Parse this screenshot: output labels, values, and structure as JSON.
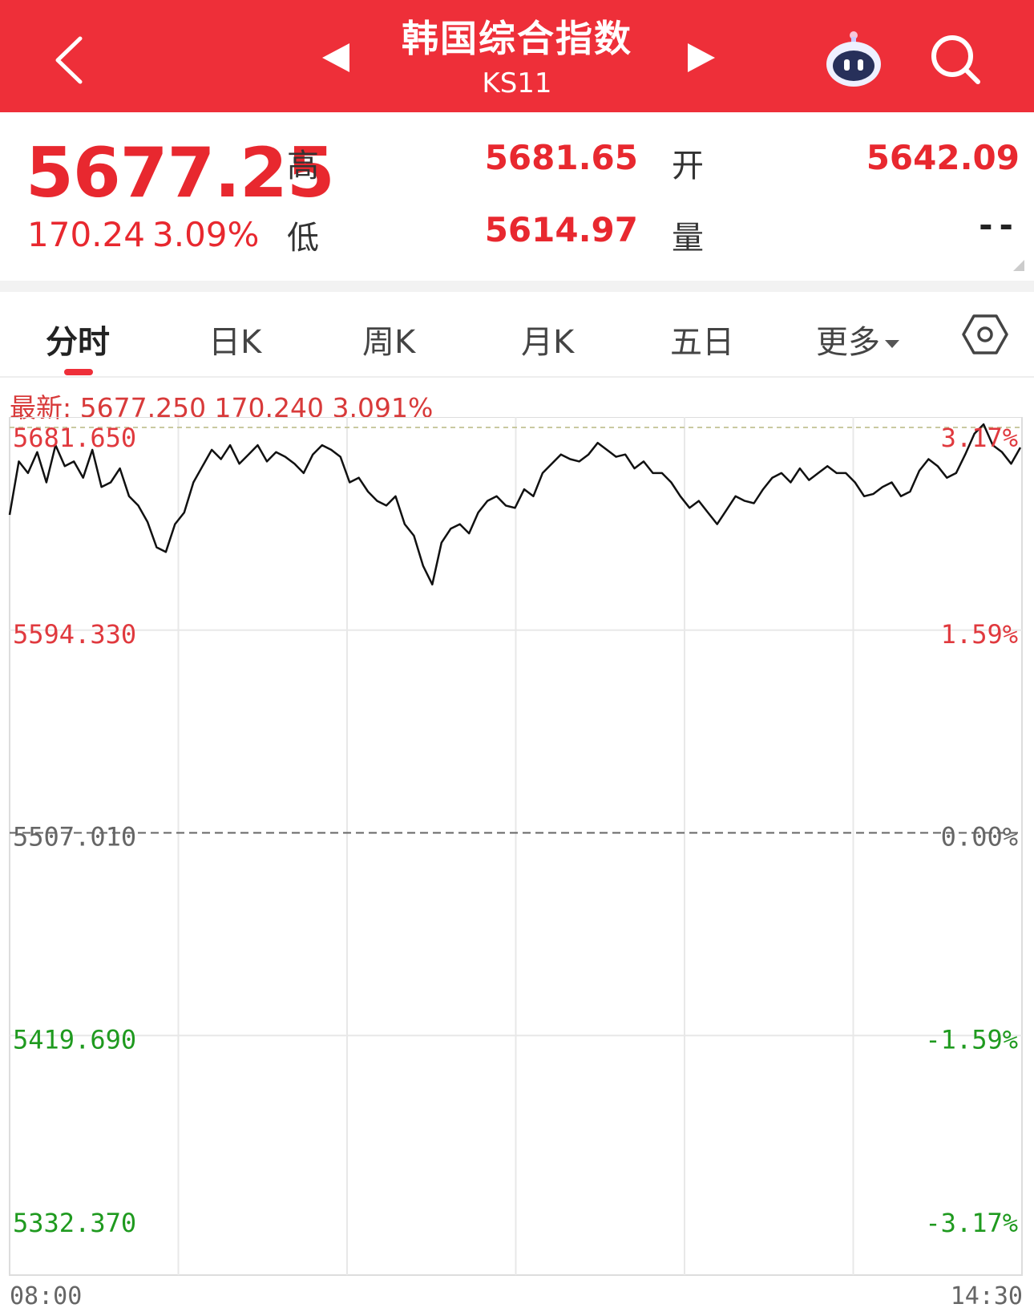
{
  "header": {
    "title": "韩国综合指数",
    "code": "KS11",
    "icons": {
      "back": "chevron-left-icon",
      "prev": "triangle-left-icon",
      "next": "triangle-right-icon",
      "assistant": "robot-icon",
      "search": "search-icon"
    },
    "bg_color": "#ee2f39"
  },
  "quote": {
    "price": "5677.25",
    "change": "170.24",
    "change_pct": "3.09%",
    "high_label": "高",
    "high": "5681.65",
    "low_label": "低",
    "low": "5614.97",
    "open_label": "开",
    "open": "5642.09",
    "volume_label": "量",
    "volume": "--",
    "up_color": "#e8282f"
  },
  "tabs": [
    {
      "label": "分时",
      "active": true
    },
    {
      "label": "日K"
    },
    {
      "label": "周K"
    },
    {
      "label": "月K"
    },
    {
      "label": "五日"
    },
    {
      "label": "更多"
    }
  ],
  "latest_line": "最新: 5677.250  170.240  3.091%",
  "chart_data": {
    "type": "line",
    "x_start": "08:00",
    "x_end": "14:30",
    "y_ticks_left": [
      "5681.650",
      "5594.330",
      "5507.010",
      "5419.690",
      "5332.370"
    ],
    "y_ticks_right": [
      "3.17%",
      "1.59%",
      "0.00%",
      "-1.59%",
      "-3.17%"
    ],
    "ylim": [
      5332.37,
      5681.65
    ],
    "prev_close": 5507.01,
    "grid": true,
    "series": [
      {
        "values": [
          5644,
          5667,
          5662,
          5671,
          5658,
          5674,
          5665,
          5667,
          5660,
          5672,
          5656,
          5658,
          5664,
          5652,
          5648,
          5641,
          5630,
          5628,
          5640,
          5645,
          5658,
          5665,
          5672,
          5668,
          5674,
          5666,
          5670,
          5674,
          5667,
          5671,
          5669,
          5666,
          5662,
          5670,
          5674,
          5672,
          5669,
          5658,
          5660,
          5654,
          5650,
          5648,
          5652,
          5640,
          5635,
          5622,
          5614,
          5632,
          5638,
          5640,
          5636,
          5645,
          5650,
          5652,
          5648,
          5647,
          5655,
          5652,
          5662,
          5666,
          5670,
          5668,
          5667,
          5670,
          5675,
          5672,
          5669,
          5670,
          5664,
          5667,
          5662,
          5662,
          5658,
          5652,
          5647,
          5650,
          5645,
          5640,
          5646,
          5652,
          5650,
          5649,
          5655,
          5660,
          5662,
          5658,
          5664,
          5659,
          5662,
          5665,
          5662,
          5662,
          5658,
          5652,
          5653,
          5656,
          5658,
          5652,
          5654,
          5663,
          5668,
          5665,
          5660,
          5662,
          5670,
          5679,
          5683,
          5674,
          5671,
          5666,
          5673
        ]
      }
    ],
    "line_color": "#111111",
    "up_label_color": "#e0393e",
    "down_label_color": "#1f9a1f",
    "neutral_label_color": "#666666"
  }
}
